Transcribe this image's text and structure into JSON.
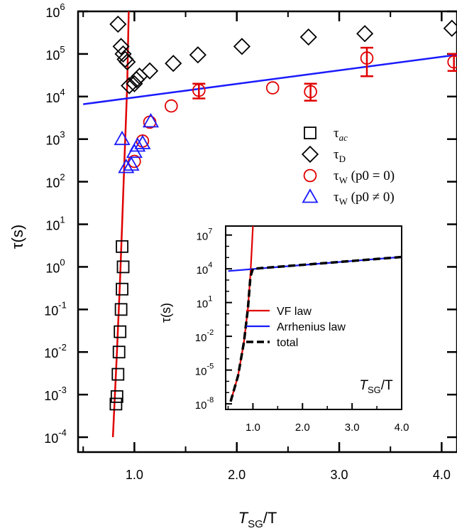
{
  "chart_data": [
    {
      "type": "scatter",
      "xlabel": {
        "main": "T",
        "sub": "SG",
        "rest": "/T"
      },
      "ylabel": "τ(s)",
      "xlim": [
        0.45,
        4.15
      ],
      "ylim_log10": [
        -4.35,
        6.0
      ],
      "yscale": "log",
      "x_ticks": [
        1.0,
        2.0,
        3.0,
        4.0
      ],
      "x_tick_labels": [
        "1.0",
        "2.0",
        "3.0",
        "4.0"
      ],
      "y_ticks": [
        {
          "base": "10",
          "exp": "6",
          "value": 6
        },
        {
          "base": "10",
          "exp": "5",
          "value": 5
        },
        {
          "base": "10",
          "exp": "4",
          "value": 4
        },
        {
          "base": "10",
          "exp": "3",
          "value": 3
        },
        {
          "base": "10",
          "exp": "2",
          "value": 2
        },
        {
          "base": "10",
          "exp": "1",
          "value": 1
        },
        {
          "base": "10",
          "exp": "0",
          "value": 0
        },
        {
          "base": "10",
          "exp": "-1",
          "value": -1
        },
        {
          "base": "10",
          "exp": "-2",
          "value": -2
        },
        {
          "base": "10",
          "exp": "-3",
          "value": -3
        },
        {
          "base": "10",
          "exp": "-4",
          "value": -4
        }
      ],
      "legend": [
        {
          "marker": "square",
          "sym": "τ",
          "sub": "ac",
          "sub_italic": true,
          "rest": "",
          "color": "#000000"
        },
        {
          "marker": "diamond",
          "sym": "τ",
          "sub": "D",
          "sub_italic": false,
          "rest": "",
          "color": "#000000"
        },
        {
          "marker": "circle",
          "sym": "τ",
          "sub": "W",
          "sub_italic": false,
          "rest": " (p0 = 0)",
          "color": "#e00000"
        },
        {
          "marker": "triangle",
          "sym": "τ",
          "sub": "W",
          "sub_italic": false,
          "rest": " (p0 ≠ 0)",
          "color": "#1a1aff"
        }
      ],
      "series": [
        {
          "name": "τac",
          "marker": "square",
          "color": "#000000",
          "points": [
            {
              "x": 0.82,
              "y": 0.0006
            },
            {
              "x": 0.83,
              "y": 0.0009
            },
            {
              "x": 0.84,
              "y": 0.003
            },
            {
              "x": 0.85,
              "y": 0.01
            },
            {
              "x": 0.86,
              "y": 0.03
            },
            {
              "x": 0.87,
              "y": 0.1
            },
            {
              "x": 0.88,
              "y": 0.3
            },
            {
              "x": 0.89,
              "y": 1.0
            },
            {
              "x": 0.88,
              "y": 3.0
            }
          ]
        },
        {
          "name": "τD",
          "marker": "diamond",
          "color": "#000000",
          "points": [
            {
              "x": 0.84,
              "y": 500000
            },
            {
              "x": 0.87,
              "y": 150000
            },
            {
              "x": 0.89,
              "y": 100000
            },
            {
              "x": 0.91,
              "y": 75000
            },
            {
              "x": 0.93,
              "y": 65000
            },
            {
              "x": 0.95,
              "y": 18000
            },
            {
              "x": 1.0,
              "y": 20000
            },
            {
              "x": 1.02,
              "y": 25000
            },
            {
              "x": 1.05,
              "y": 30000
            },
            {
              "x": 1.15,
              "y": 40000
            },
            {
              "x": 1.38,
              "y": 60000
            },
            {
              "x": 1.62,
              "y": 95000
            },
            {
              "x": 2.05,
              "y": 150000
            },
            {
              "x": 2.7,
              "y": 250000
            },
            {
              "x": 3.25,
              "y": 300000
            },
            {
              "x": 4.1,
              "y": 400000
            }
          ]
        },
        {
          "name": "τW (p0 = 0)",
          "marker": "circle",
          "color": "#e00000",
          "points": [
            {
              "x": 1.0,
              "y": 300
            },
            {
              "x": 1.08,
              "y": 900
            },
            {
              "x": 1.15,
              "y": 2500
            },
            {
              "x": 1.36,
              "y": 6000
            },
            {
              "x": 1.63,
              "y": 14000,
              "err": [
                9000,
                20000
              ]
            },
            {
              "x": 2.35,
              "y": 16000
            },
            {
              "x": 2.72,
              "y": 13000,
              "err": [
                8000,
                20000
              ]
            },
            {
              "x": 3.27,
              "y": 80000,
              "err": [
                30000,
                140000
              ]
            },
            {
              "x": 4.12,
              "y": 65000,
              "err": [
                40000,
                100000
              ]
            }
          ]
        },
        {
          "name": "τW (p0 ≠ 0)",
          "marker": "triangle",
          "color": "#1a1aff",
          "points": [
            {
              "x": 0.88,
              "y": 1000
            },
            {
              "x": 0.92,
              "y": 220
            },
            {
              "x": 0.97,
              "y": 250
            },
            {
              "x": 1.0,
              "y": 500
            },
            {
              "x": 1.03,
              "y": 700
            },
            {
              "x": 1.08,
              "y": 800
            },
            {
              "x": 1.16,
              "y": 2600
            }
          ]
        }
      ],
      "lines": [
        {
          "name": "VF law",
          "color": "#e00000",
          "points_log": [
            [
              0.79,
              -4.0
            ],
            [
              0.83,
              -2.0
            ],
            [
              0.86,
              -0.3
            ],
            [
              0.88,
              1.0
            ],
            [
              0.9,
              2.3
            ],
            [
              0.92,
              3.6
            ],
            [
              0.93,
              4.3
            ],
            [
              0.945,
              6.0
            ]
          ]
        },
        {
          "name": "Arrhenius law",
          "color": "#1a1aff",
          "points_log": [
            [
              0.5,
              3.82
            ],
            [
              4.15,
              4.98
            ]
          ]
        }
      ]
    },
    {
      "type": "line",
      "xlabel": {
        "main": "T",
        "sub": "SG",
        "rest": "/T"
      },
      "ylabel": "τ(s)",
      "yscale": "log",
      "xlim": [
        0.45,
        4.0
      ],
      "ylim_log10": [
        -8.5,
        7.8
      ],
      "x_ticks": [
        1.0,
        2.0,
        3.0,
        4.0
      ],
      "x_tick_labels": [
        "1.0",
        "2.0",
        "3.0",
        "4.0"
      ],
      "y_ticks": [
        {
          "base": "10",
          "exp": "7",
          "value": 7
        },
        {
          "base": "10",
          "exp": "4",
          "value": 4
        },
        {
          "base": "10",
          "exp": "1",
          "value": 1
        },
        {
          "base": "10",
          "exp": "-2",
          "value": -2
        },
        {
          "base": "10",
          "exp": "-5",
          "value": -5
        },
        {
          "base": "10",
          "exp": "-8",
          "value": -8
        }
      ],
      "legend": [
        "VF law",
        "Arrhenius law",
        "total"
      ],
      "series": [
        {
          "name": "VF law",
          "color": "#e00000",
          "dash": "solid",
          "points_log": [
            [
              0.55,
              -7.8
            ],
            [
              0.7,
              -5.5
            ],
            [
              0.82,
              -2.5
            ],
            [
              0.9,
              0.5
            ],
            [
              0.95,
              3.5
            ],
            [
              0.98,
              6.0
            ],
            [
              1.0,
              8.2
            ]
          ]
        },
        {
          "name": "Arrhenius law",
          "color": "#1a1aff",
          "dash": "solid",
          "points_log": [
            [
              0.5,
              3.8
            ],
            [
              4.0,
              5.05
            ]
          ]
        },
        {
          "name": "total",
          "color": "#000000",
          "dash": "dashed",
          "points_log": [
            [
              0.55,
              -7.8
            ],
            [
              0.7,
              -5.5
            ],
            [
              0.82,
              -2.5
            ],
            [
              0.9,
              0.5
            ],
            [
              0.95,
              3.3
            ],
            [
              1.0,
              4.0
            ],
            [
              2.0,
              4.35
            ],
            [
              3.0,
              4.7
            ],
            [
              4.0,
              5.05
            ]
          ]
        }
      ]
    }
  ]
}
